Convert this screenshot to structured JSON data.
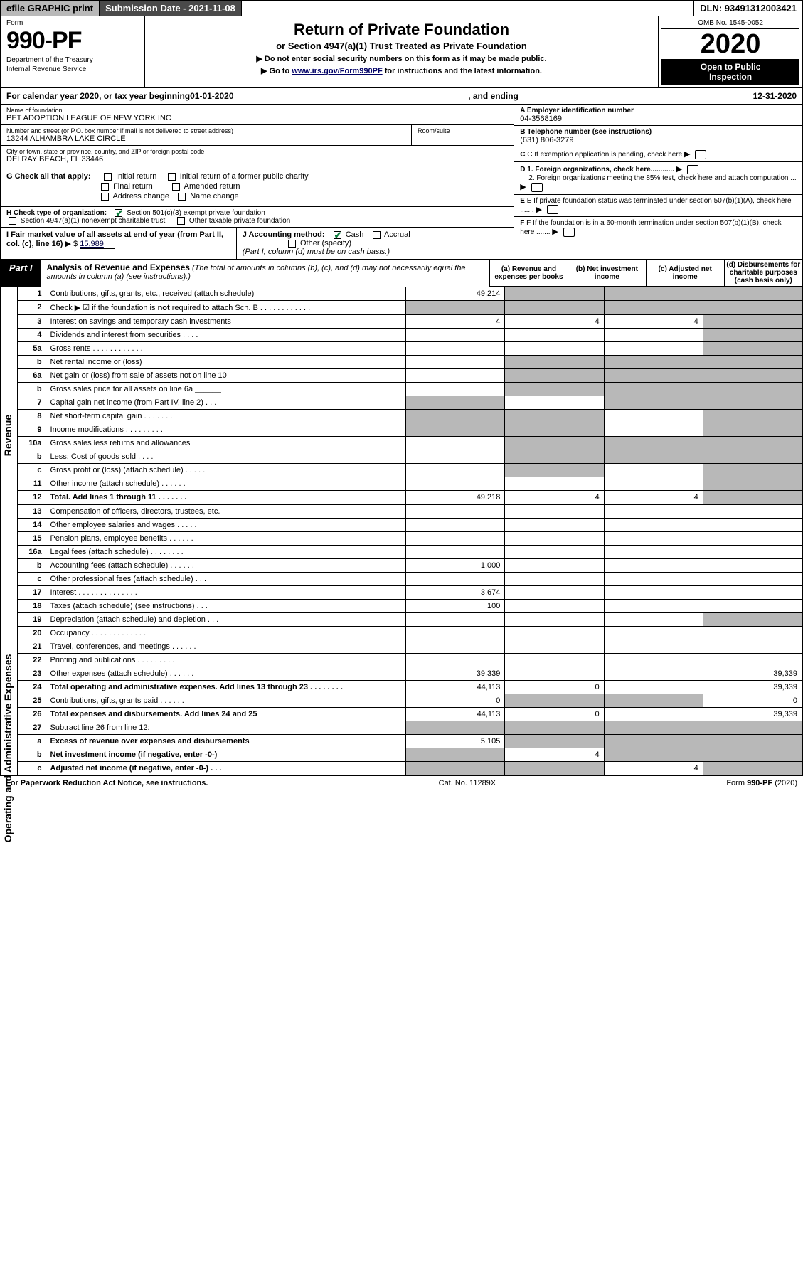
{
  "topbar": {
    "efile": "efile GRAPHIC print",
    "submission": "Submission Date - 2021-11-08",
    "dln": "DLN: 93491312003421"
  },
  "header": {
    "form_label": "Form",
    "form_num": "990-PF",
    "dept1": "Department of the Treasury",
    "dept2": "Internal Revenue Service",
    "title": "Return of Private Foundation",
    "subtitle": "or Section 4947(a)(1) Trust Treated as Private Foundation",
    "instr1": "▶ Do not enter social security numbers on this form as it may be made public.",
    "instr2_pre": "▶ Go to ",
    "instr2_link": "www.irs.gov/Form990PF",
    "instr2_post": " for instructions and the latest information.",
    "omb": "OMB No. 1545-0052",
    "year": "2020",
    "open1": "Open to Public",
    "open2": "Inspection"
  },
  "cal": {
    "pre": "For calendar year 2020, or tax year beginning ",
    "begin": "01-01-2020",
    "mid": ", and ending ",
    "end": "12-31-2020"
  },
  "ident": {
    "name_label": "Name of foundation",
    "name": "PET ADOPTION LEAGUE OF NEW YORK INC",
    "addr_label": "Number and street (or P.O. box number if mail is not delivered to street address)",
    "addr": "13244 ALHAMBRA LAKE CIRCLE",
    "room_label": "Room/suite",
    "city_label": "City or town, state or province, country, and ZIP or foreign postal code",
    "city": "DELRAY BEACH, FL  33446",
    "a_label": "A Employer identification number",
    "a_val": "04-3568169",
    "b_label": "B Telephone number (see instructions)",
    "b_val": "(631) 806-3279",
    "c_label": "C If exemption application is pending, check here",
    "d1": "D 1. Foreign organizations, check here............",
    "d2": "2. Foreign organizations meeting the 85% test, check here and attach computation ...",
    "e_label": "E  If private foundation status was terminated under section 507(b)(1)(A), check here .......",
    "f_label": "F  If the foundation is in a 60-month termination under section 507(b)(1)(B), check here .......",
    "g_label": "G Check all that apply:",
    "g_opts": [
      "Initial return",
      "Initial return of a former public charity",
      "Final return",
      "Amended return",
      "Address change",
      "Name change"
    ],
    "h_label": "H Check type of organization:",
    "h_opt1": "Section 501(c)(3) exempt private foundation",
    "h_opt2": "Section 4947(a)(1) nonexempt charitable trust",
    "h_opt3": "Other taxable private foundation",
    "i_label": "I Fair market value of all assets at end of year (from Part II, col. (c), line 16)",
    "i_val": "15,989",
    "j_label": "J Accounting method:",
    "j_cash": "Cash",
    "j_accrual": "Accrual",
    "j_other": "Other (specify)",
    "j_note": "(Part I, column (d) must be on cash basis.)"
  },
  "part1": {
    "tab": "Part I",
    "title": "Analysis of Revenue and Expenses",
    "note": " (The total of amounts in columns (b), (c), and (d) may not necessarily equal the amounts in column (a) (see instructions).)",
    "col_a": "(a)   Revenue and expenses per books",
    "col_b": "(b)   Net investment income",
    "col_c": "(c)   Adjusted net income",
    "col_d": "(d)   Disbursements for charitable purposes (cash basis only)"
  },
  "sections": {
    "revenue": "Revenue",
    "expenses": "Operating and Administrative Expenses"
  },
  "rows": [
    {
      "n": "1",
      "d": "",
      "a": "49,214",
      "b": "",
      "c": "",
      "da": false,
      "db": true,
      "dc": true,
      "dd": true
    },
    {
      "n": "2",
      "d": "",
      "a": "",
      "b": "",
      "c": "",
      "da": true,
      "db": true,
      "dc": true,
      "dd": true,
      "bold": false
    },
    {
      "n": "3",
      "d": "",
      "a": "4",
      "b": "4",
      "c": "4",
      "da": false,
      "db": false,
      "dc": false,
      "dd": true
    },
    {
      "n": "4",
      "d": "",
      "a": "",
      "b": "",
      "c": "",
      "da": false,
      "db": false,
      "dc": false,
      "dd": true
    },
    {
      "n": "5a",
      "d": "",
      "a": "",
      "b": "",
      "c": "",
      "da": false,
      "db": false,
      "dc": false,
      "dd": true
    },
    {
      "n": "b",
      "d": "",
      "a": "",
      "b": "",
      "c": "",
      "da": false,
      "db": true,
      "dc": true,
      "dd": true
    },
    {
      "n": "6a",
      "d": "",
      "a": "",
      "b": "",
      "c": "",
      "da": false,
      "db": true,
      "dc": true,
      "dd": true
    },
    {
      "n": "b",
      "d": "",
      "a": "",
      "b": "",
      "c": "",
      "da": false,
      "db": true,
      "dc": true,
      "dd": true
    },
    {
      "n": "7",
      "d": "",
      "a": "",
      "b": "",
      "c": "",
      "da": true,
      "db": false,
      "dc": true,
      "dd": true
    },
    {
      "n": "8",
      "d": "",
      "a": "",
      "b": "",
      "c": "",
      "da": true,
      "db": true,
      "dc": false,
      "dd": true
    },
    {
      "n": "9",
      "d": "",
      "a": "",
      "b": "",
      "c": "",
      "da": true,
      "db": true,
      "dc": false,
      "dd": true
    },
    {
      "n": "10a",
      "d": "",
      "a": "",
      "b": "",
      "c": "",
      "da": false,
      "db": true,
      "dc": true,
      "dd": true
    },
    {
      "n": "b",
      "d": "",
      "a": "",
      "b": "",
      "c": "",
      "da": false,
      "db": true,
      "dc": true,
      "dd": true
    },
    {
      "n": "c",
      "d": "",
      "a": "",
      "b": "",
      "c": "",
      "da": false,
      "db": true,
      "dc": false,
      "dd": true
    },
    {
      "n": "11",
      "d": "",
      "a": "",
      "b": "",
      "c": "",
      "da": false,
      "db": false,
      "dc": false,
      "dd": true
    },
    {
      "n": "12",
      "d": "",
      "a": "49,218",
      "b": "4",
      "c": "4",
      "da": false,
      "db": false,
      "dc": false,
      "dd": true,
      "bold": true
    },
    {
      "n": "13",
      "d": "",
      "a": "",
      "b": "",
      "c": "",
      "da": false,
      "db": false,
      "dc": false,
      "dd": false
    },
    {
      "n": "14",
      "d": "",
      "a": "",
      "b": "",
      "c": "",
      "da": false,
      "db": false,
      "dc": false,
      "dd": false
    },
    {
      "n": "15",
      "d": "",
      "a": "",
      "b": "",
      "c": "",
      "da": false,
      "db": false,
      "dc": false,
      "dd": false
    },
    {
      "n": "16a",
      "d": "",
      "a": "",
      "b": "",
      "c": "",
      "da": false,
      "db": false,
      "dc": false,
      "dd": false
    },
    {
      "n": "b",
      "d": "",
      "a": "1,000",
      "b": "",
      "c": "",
      "da": false,
      "db": false,
      "dc": false,
      "dd": false
    },
    {
      "n": "c",
      "d": "",
      "a": "",
      "b": "",
      "c": "",
      "da": false,
      "db": false,
      "dc": false,
      "dd": false
    },
    {
      "n": "17",
      "d": "",
      "a": "3,674",
      "b": "",
      "c": "",
      "da": false,
      "db": false,
      "dc": false,
      "dd": false
    },
    {
      "n": "18",
      "d": "",
      "a": "100",
      "b": "",
      "c": "",
      "da": false,
      "db": false,
      "dc": false,
      "dd": false
    },
    {
      "n": "19",
      "d": "",
      "a": "",
      "b": "",
      "c": "",
      "da": false,
      "db": false,
      "dc": false,
      "dd": true
    },
    {
      "n": "20",
      "d": "",
      "a": "",
      "b": "",
      "c": "",
      "da": false,
      "db": false,
      "dc": false,
      "dd": false
    },
    {
      "n": "21",
      "d": "",
      "a": "",
      "b": "",
      "c": "",
      "da": false,
      "db": false,
      "dc": false,
      "dd": false
    },
    {
      "n": "22",
      "d": "",
      "a": "",
      "b": "",
      "c": "",
      "da": false,
      "db": false,
      "dc": false,
      "dd": false
    },
    {
      "n": "23",
      "d": "39,339",
      "a": "39,339",
      "b": "",
      "c": "",
      "da": false,
      "db": false,
      "dc": false,
      "dd": false
    },
    {
      "n": "24",
      "d": "39,339",
      "a": "44,113",
      "b": "0",
      "c": "",
      "da": false,
      "db": false,
      "dc": false,
      "dd": false,
      "bold": true
    },
    {
      "n": "25",
      "d": "0",
      "a": "0",
      "b": "",
      "c": "",
      "da": false,
      "db": true,
      "dc": true,
      "dd": false
    },
    {
      "n": "26",
      "d": "39,339",
      "a": "44,113",
      "b": "0",
      "c": "",
      "da": false,
      "db": false,
      "dc": false,
      "dd": false,
      "bold": true
    },
    {
      "n": "27",
      "d": "",
      "a": "",
      "b": "",
      "c": "",
      "da": true,
      "db": true,
      "dc": true,
      "dd": true
    },
    {
      "n": "a",
      "d": "",
      "a": "5,105",
      "b": "",
      "c": "",
      "da": false,
      "db": true,
      "dc": true,
      "dd": true,
      "bold": true
    },
    {
      "n": "b",
      "d": "",
      "a": "",
      "b": "4",
      "c": "",
      "da": true,
      "db": false,
      "dc": true,
      "dd": true,
      "bold": true
    },
    {
      "n": "c",
      "d": "",
      "a": "",
      "b": "",
      "c": "4",
      "da": true,
      "db": true,
      "dc": false,
      "dd": true,
      "bold": true
    }
  ],
  "footer": {
    "left": "For Paperwork Reduction Act Notice, see instructions.",
    "mid": "Cat. No. 11289X",
    "right": "Form 990-PF (2020)"
  }
}
